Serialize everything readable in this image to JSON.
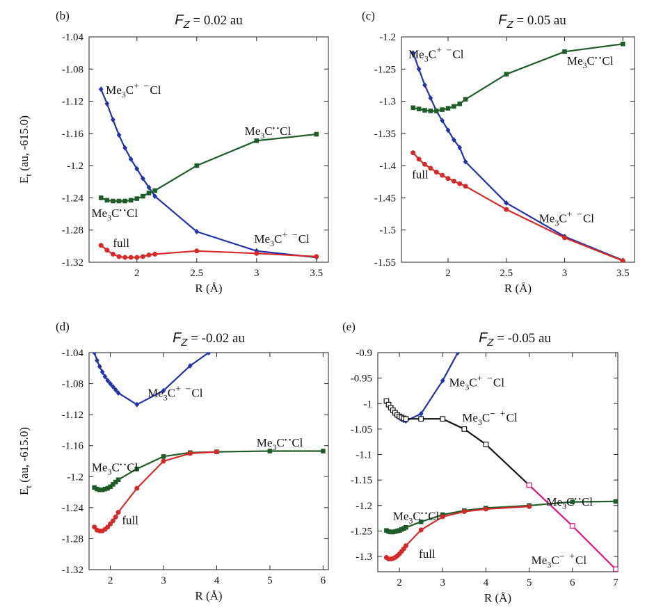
{
  "colors": {
    "blue": "#2233aa",
    "green": "#1e5c28",
    "red": "#d42a2a",
    "black": "#111111",
    "magenta": "#e0157f"
  },
  "chart_data": [
    {
      "panel": "(b)",
      "title": {
        "italic": "F",
        "sub": "Z",
        "rest": " = 0.02 au"
      },
      "type": "line",
      "xlabel": "R (Å)",
      "ylabel": {
        "main": "E",
        "sub": "t",
        "rest": " (au, -615.0)"
      },
      "xlim": [
        1.6,
        3.6
      ],
      "ylim": [
        -1.32,
        -1.04
      ],
      "xticks": [
        {
          "v": 2,
          "t": "2"
        },
        {
          "v": 2.5,
          "t": "2.5"
        },
        {
          "v": 3,
          "t": "3"
        },
        {
          "v": 3.5,
          "t": "3.5"
        }
      ],
      "yticks": [
        {
          "v": -1.04,
          "t": "-1.04"
        },
        {
          "v": -1.08,
          "t": "-1.08"
        },
        {
          "v": -1.12,
          "t": "-1.12"
        },
        {
          "v": -1.16,
          "t": "-1.16"
        },
        {
          "v": -1.2,
          "t": "-1.2"
        },
        {
          "v": -1.24,
          "t": "-1.24"
        },
        {
          "v": -1.28,
          "t": "-1.28"
        },
        {
          "v": -1.32,
          "t": "-1.32"
        }
      ],
      "series": [
        {
          "color": "blue",
          "marker": "diamond",
          "x": [
            1.7,
            1.75,
            1.8,
            1.85,
            1.9,
            1.95,
            2.0,
            2.05,
            2.1,
            2.15,
            2.5,
            3.0,
            3.5
          ],
          "y": [
            -1.105,
            -1.123,
            -1.143,
            -1.162,
            -1.178,
            -1.192,
            -1.204,
            -1.216,
            -1.227,
            -1.238,
            -1.282,
            -1.306,
            -1.314
          ]
        },
        {
          "color": "green",
          "marker": "square",
          "x": [
            1.7,
            1.75,
            1.8,
            1.85,
            1.9,
            1.95,
            2.0,
            2.05,
            2.1,
            2.15,
            2.5,
            3.0,
            3.5
          ],
          "y": [
            -1.24,
            -1.243,
            -1.244,
            -1.244,
            -1.244,
            -1.243,
            -1.241,
            -1.238,
            -1.234,
            -1.231,
            -1.2,
            -1.169,
            -1.161
          ]
        },
        {
          "color": "red",
          "marker": "circle",
          "x": [
            1.7,
            1.75,
            1.8,
            1.85,
            1.9,
            1.95,
            2.0,
            2.05,
            2.1,
            2.15,
            2.5,
            3.0,
            3.5
          ],
          "y": [
            -1.299,
            -1.305,
            -1.31,
            -1.313,
            -1.314,
            -1.314,
            -1.314,
            -1.313,
            -1.311,
            -1.31,
            -1.306,
            -1.309,
            -1.313
          ]
        }
      ],
      "annotations": [
        {
          "t": "Me$3C+ -Cl",
          "x": 1.74,
          "y": -1.111
        },
        {
          "t": "Me$3C••Cl",
          "x": 2.9,
          "y": -1.162
        },
        {
          "t": "Me$3C••Cl",
          "x": 1.62,
          "y": -1.264
        },
        {
          "t": "full",
          "x": 1.8,
          "y": -1.301
        },
        {
          "t": "Me$3C+ -Cl",
          "x": 2.98,
          "y": -1.296
        }
      ]
    },
    {
      "panel": "(c)",
      "title": {
        "italic": "F",
        "sub": "Z",
        "rest": " = 0.05 au"
      },
      "type": "line",
      "xlabel": "R (Å)",
      "ylabel": null,
      "xlim": [
        1.6,
        3.6
      ],
      "ylim": [
        -1.55,
        -1.2
      ],
      "xticks": [
        {
          "v": 2,
          "t": "2"
        },
        {
          "v": 2.5,
          "t": "2.5"
        },
        {
          "v": 3,
          "t": "3"
        },
        {
          "v": 3.5,
          "t": "3.5"
        }
      ],
      "yticks": [
        {
          "v": -1.2,
          "t": "-1.2"
        },
        {
          "v": -1.25,
          "t": "-1.25"
        },
        {
          "v": -1.3,
          "t": "-1.3"
        },
        {
          "v": -1.35,
          "t": "-1.35"
        },
        {
          "v": -1.4,
          "t": "-1.4"
        },
        {
          "v": -1.45,
          "t": "-1.45"
        },
        {
          "v": -1.5,
          "t": "-1.5"
        },
        {
          "v": -1.55,
          "t": "-1.55"
        }
      ],
      "series": [
        {
          "color": "blue",
          "marker": "diamond",
          "x": [
            1.7,
            1.75,
            1.8,
            1.85,
            1.9,
            1.95,
            2.0,
            2.05,
            2.1,
            2.15,
            2.5,
            3.0,
            3.5
          ],
          "y": [
            -1.225,
            -1.25,
            -1.275,
            -1.295,
            -1.315,
            -1.33,
            -1.345,
            -1.36,
            -1.372,
            -1.394,
            -1.458,
            -1.51,
            -1.547
          ]
        },
        {
          "color": "green",
          "marker": "square",
          "x": [
            1.7,
            1.75,
            1.8,
            1.85,
            1.9,
            1.95,
            2.0,
            2.05,
            2.1,
            2.15,
            2.5,
            3.0,
            3.5
          ],
          "y": [
            -1.31,
            -1.312,
            -1.314,
            -1.315,
            -1.315,
            -1.313,
            -1.311,
            -1.308,
            -1.304,
            -1.297,
            -1.258,
            -1.223,
            -1.211
          ]
        },
        {
          "color": "red",
          "marker": "circle",
          "x": [
            1.7,
            1.75,
            1.8,
            1.85,
            1.9,
            1.95,
            2.0,
            2.05,
            2.1,
            2.15,
            2.5,
            3.0,
            3.5
          ],
          "y": [
            -1.38,
            -1.39,
            -1.398,
            -1.404,
            -1.41,
            -1.415,
            -1.42,
            -1.424,
            -1.428,
            -1.432,
            -1.468,
            -1.512,
            -1.548
          ]
        }
      ],
      "annotations": [
        {
          "t": "Me$3C+ -Cl",
          "x": 1.66,
          "y": -1.233
        },
        {
          "t": "Me$3C••Cl",
          "x": 3.02,
          "y": -1.243
        },
        {
          "t": "full",
          "x": 1.69,
          "y": -1.42
        },
        {
          "t": "Me$3C+ -Cl",
          "x": 2.78,
          "y": -1.488
        }
      ]
    },
    {
      "panel": "(d)",
      "title": {
        "italic": "F",
        "sub": "Z",
        "rest": " = -0.02 au"
      },
      "type": "line",
      "xlabel": "R (Å)",
      "ylabel": {
        "main": "E",
        "sub": "t",
        "rest": " (au, -615.0)"
      },
      "xlim": [
        1.6,
        6.1
      ],
      "ylim": [
        -1.32,
        -1.04
      ],
      "xticks": [
        {
          "v": 2,
          "t": "2"
        },
        {
          "v": 3,
          "t": "3"
        },
        {
          "v": 4,
          "t": "4"
        },
        {
          "v": 5,
          "t": "5"
        },
        {
          "v": 6,
          "t": "6"
        }
      ],
      "yticks": [
        {
          "v": -1.04,
          "t": "-1.04"
        },
        {
          "v": -1.08,
          "t": "-1.08"
        },
        {
          "v": -1.12,
          "t": "-1.12"
        },
        {
          "v": -1.16,
          "t": "-1.16"
        },
        {
          "v": -1.2,
          "t": "-1.2"
        },
        {
          "v": -1.24,
          "t": "-1.24"
        },
        {
          "v": -1.28,
          "t": "-1.28"
        },
        {
          "v": -1.32,
          "t": "-1.32"
        }
      ],
      "series": [
        {
          "color": "blue",
          "marker": "diamond",
          "x": [
            1.7,
            1.75,
            1.8,
            1.85,
            1.9,
            1.95,
            2.0,
            2.05,
            2.1,
            2.15,
            2.5,
            3.0,
            3.5,
            3.85
          ],
          "y": [
            -1.04,
            -1.05,
            -1.058,
            -1.065,
            -1.071,
            -1.076,
            -1.08,
            -1.084,
            -1.088,
            -1.092,
            -1.107,
            -1.089,
            -1.057,
            -1.04
          ]
        },
        {
          "color": "green",
          "marker": "square",
          "x": [
            1.7,
            1.75,
            1.8,
            1.85,
            1.9,
            1.95,
            2.0,
            2.05,
            2.1,
            2.15,
            2.5,
            3.0,
            3.5,
            4.0,
            5.0,
            6.0
          ],
          "y": [
            -1.214,
            -1.216,
            -1.217,
            -1.217,
            -1.216,
            -1.215,
            -1.213,
            -1.21,
            -1.207,
            -1.204,
            -1.19,
            -1.174,
            -1.169,
            -1.168,
            -1.167,
            -1.167
          ]
        },
        {
          "color": "red",
          "marker": "circle",
          "x": [
            1.7,
            1.75,
            1.8,
            1.85,
            1.9,
            1.95,
            2.0,
            2.05,
            2.1,
            2.15,
            2.5,
            3.0,
            3.5,
            4.0
          ],
          "y": [
            -1.265,
            -1.269,
            -1.27,
            -1.27,
            -1.268,
            -1.265,
            -1.261,
            -1.257,
            -1.252,
            -1.246,
            -1.215,
            -1.18,
            -1.17,
            -1.168
          ]
        }
      ],
      "annotations": [
        {
          "t": "Me$3C+ -Cl",
          "x": 2.7,
          "y": -1.097
        },
        {
          "t": "Me$3C••Cl",
          "x": 4.75,
          "y": -1.161
        },
        {
          "t": "Me$3C••Cl",
          "x": 1.65,
          "y": -1.193
        },
        {
          "t": "full",
          "x": 2.22,
          "y": -1.261
        }
      ]
    },
    {
      "panel": "(e)",
      "title": {
        "italic": "F",
        "sub": "Z",
        "rest": " = -0.05 au"
      },
      "type": "line",
      "xlabel": "R (Å)",
      "ylabel": null,
      "xlim": [
        1.5,
        7.05
      ],
      "ylim": [
        -1.33,
        -0.9
      ],
      "xticks": [
        {
          "v": 2,
          "t": "2"
        },
        {
          "v": 3,
          "t": "3"
        },
        {
          "v": 4,
          "t": "4"
        },
        {
          "v": 5,
          "t": "5"
        },
        {
          "v": 6,
          "t": "6"
        },
        {
          "v": 7,
          "t": "7"
        }
      ],
      "yticks": [
        {
          "v": -0.9,
          "t": "-0.9"
        },
        {
          "v": -0.95,
          "t": "-0.95"
        },
        {
          "v": -1.0,
          "t": "-1"
        },
        {
          "v": -1.05,
          "t": "-1.05"
        },
        {
          "v": -1.1,
          "t": "-1.1"
        },
        {
          "v": -1.15,
          "t": "-1.15"
        },
        {
          "v": -1.2,
          "t": "-1.2"
        },
        {
          "v": -1.25,
          "t": "-1.25"
        },
        {
          "v": -1.3,
          "t": "-1.3"
        }
      ],
      "series": [
        {
          "color": "blue",
          "marker": "diamond",
          "x": [
            1.7,
            1.75,
            1.8,
            1.85,
            1.9,
            1.95,
            2.0,
            2.05,
            2.1,
            2.15,
            2.5,
            3.0,
            3.35
          ],
          "y": [
            -0.997,
            -1.003,
            -1.01,
            -1.016,
            -1.021,
            -1.025,
            -1.028,
            -1.031,
            -1.033,
            -1.034,
            -1.02,
            -0.955,
            -0.9
          ]
        },
        {
          "color": "black",
          "marker": "open-square",
          "x": [
            1.7,
            1.75,
            1.8,
            1.85,
            1.9,
            1.95,
            2.0,
            2.05,
            2.1,
            2.15,
            2.5,
            3.0,
            3.5,
            4.0,
            5.0
          ],
          "y": [
            -0.995,
            -1.002,
            -1.008,
            -1.013,
            -1.018,
            -1.022,
            -1.025,
            -1.027,
            -1.029,
            -1.03,
            -1.03,
            -1.03,
            -1.05,
            -1.08,
            -1.16
          ]
        },
        {
          "color": "magenta",
          "marker": "open-square",
          "x": [
            5.0,
            6.0,
            7.0
          ],
          "y": [
            -1.16,
            -1.24,
            -1.325
          ]
        },
        {
          "color": "green",
          "marker": "square",
          "x": [
            1.7,
            1.75,
            1.8,
            1.85,
            1.9,
            1.95,
            2.0,
            2.05,
            2.1,
            2.15,
            2.5,
            3.0,
            3.5,
            4.0,
            5.0,
            6.0,
            7.0
          ],
          "y": [
            -1.249,
            -1.251,
            -1.252,
            -1.252,
            -1.251,
            -1.25,
            -1.249,
            -1.247,
            -1.245,
            -1.243,
            -1.232,
            -1.218,
            -1.21,
            -1.205,
            -1.2,
            -1.193,
            -1.192
          ]
        },
        {
          "color": "red",
          "marker": "circle",
          "x": [
            1.7,
            1.75,
            1.8,
            1.85,
            1.9,
            1.95,
            2.0,
            2.05,
            2.1,
            2.15,
            2.5,
            3.0,
            3.5,
            4.0,
            5.0
          ],
          "y": [
            -1.302,
            -1.305,
            -1.305,
            -1.304,
            -1.302,
            -1.299,
            -1.295,
            -1.29,
            -1.285,
            -1.279,
            -1.248,
            -1.222,
            -1.212,
            -1.207,
            -1.202
          ]
        }
      ],
      "annotations": [
        {
          "t": "Me$3C+ -Cl",
          "x": 3.15,
          "y": -0.966
        },
        {
          "t": "Me$3C- +Cl",
          "x": 3.45,
          "y": -1.035
        },
        {
          "t": "Me$3C••Cl",
          "x": 5.4,
          "y": -1.2
        },
        {
          "t": "Me$3C••Cl",
          "x": 1.85,
          "y": -1.228
        },
        {
          "t": "full",
          "x": 2.45,
          "y": -1.303
        },
        {
          "t": "Me$3C- +Cl",
          "x": 5.05,
          "y": -1.315
        }
      ]
    }
  ]
}
